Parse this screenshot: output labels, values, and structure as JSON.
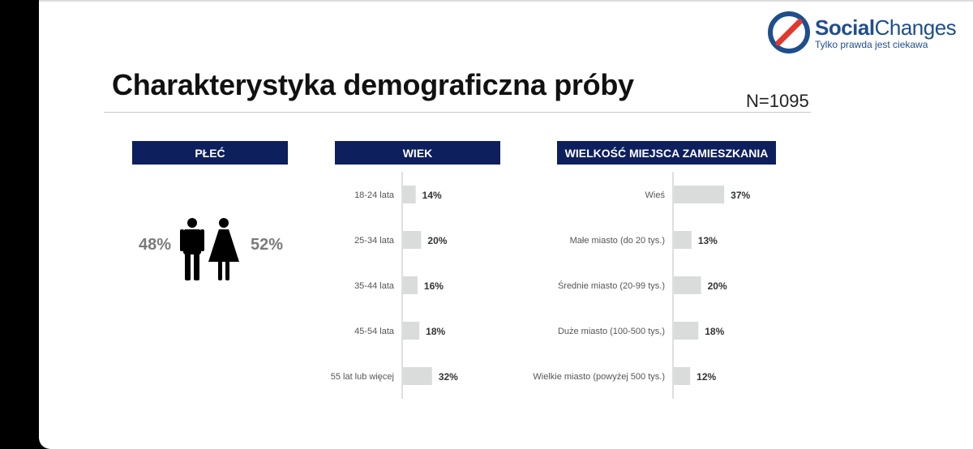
{
  "logo": {
    "brand_part1": "Social",
    "brand_part2": "Changes",
    "tagline": "Tylko prawda jest ciekawa",
    "colors": {
      "ring": "#1f4e8c",
      "slash": "#e03a2f"
    }
  },
  "title": "Charakterystyka demograficzna próby",
  "sample_size": "N=1095",
  "gender": {
    "header": "PŁEĆ",
    "male_pct": "48%",
    "female_pct": "52%",
    "icon": "male-female-icon"
  },
  "colors": {
    "header_bg": "#0d1f5c",
    "bar": "#d9dcdb",
    "axis": "#bfbfbf"
  },
  "chart_data": [
    {
      "type": "bar",
      "orientation": "horizontal",
      "header": "WIEK",
      "categories": [
        "18-24 lata",
        "25-34 lata",
        "35-44 lata",
        "45-54 lata",
        "55 lat lub więcej"
      ],
      "values": [
        14,
        20,
        16,
        18,
        32
      ],
      "value_labels": [
        "14%",
        "20%",
        "16%",
        "18%",
        "32%"
      ],
      "title": "",
      "xlabel": "",
      "ylabel": "",
      "xlim": [
        0,
        100
      ],
      "grid": false,
      "legend": "none"
    },
    {
      "type": "bar",
      "orientation": "horizontal",
      "header": "WIELKOŚĆ MIEJSCA ZAMIESZKANIA",
      "categories": [
        "Wieś",
        "Małe miasto (do 20 tys.)",
        "Średnie miasto (20-99 tys.)",
        "Duże miasto (100-500 tys,)",
        "Wielkie miasto (powyżej 500 tys.)"
      ],
      "values": [
        37,
        13,
        20,
        18,
        12
      ],
      "value_labels": [
        "37%",
        "13%",
        "20%",
        "18%",
        "12%"
      ],
      "title": "",
      "xlabel": "",
      "ylabel": "",
      "xlim": [
        0,
        100
      ],
      "grid": false,
      "legend": "none"
    }
  ]
}
